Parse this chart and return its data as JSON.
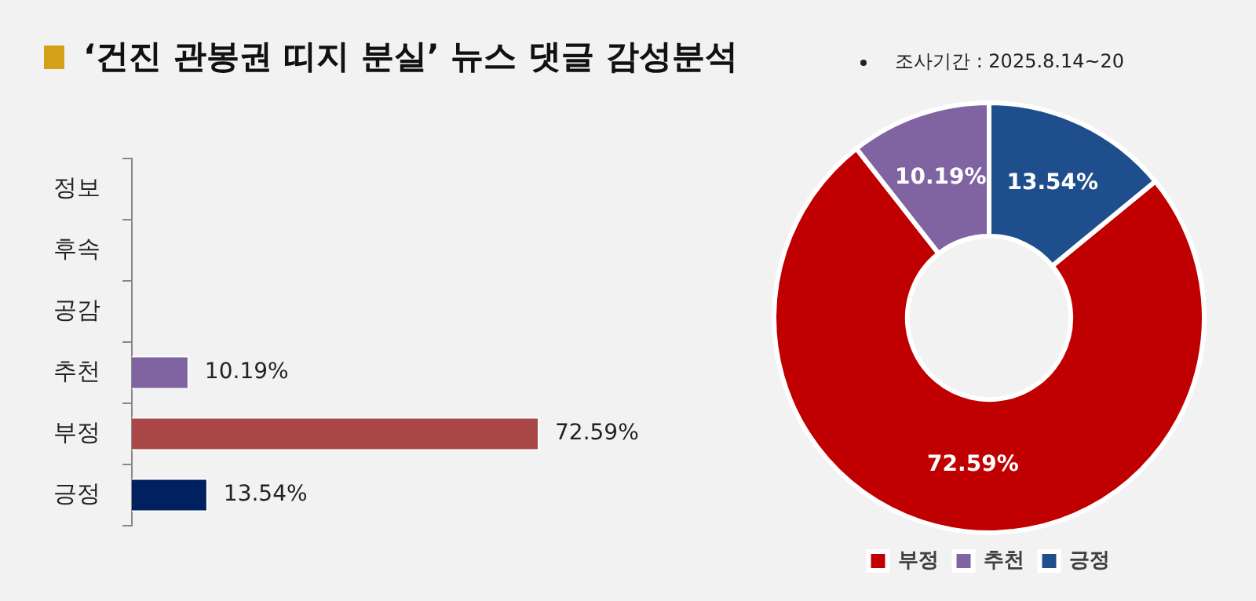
{
  "chart_data": [
    {
      "type": "bar",
      "orientation": "horizontal",
      "title": "‘건진 관봉권 띠지 분실’ 뉴스 댓글 감성분석",
      "categories": [
        "정보",
        "후속",
        "공감",
        "추천",
        "부정",
        "긍정"
      ],
      "values": [
        null,
        null,
        null,
        10.19,
        72.59,
        13.54
      ],
      "colors": [
        "#8064a2",
        "#8064a2",
        "#8064a2",
        "#8064a2",
        "#a94846",
        "#002060"
      ],
      "value_labels": [
        null,
        null,
        null,
        "10.19%",
        "72.59%",
        "13.54%"
      ],
      "legend": false,
      "grid": false
    },
    {
      "type": "donut",
      "subtitle": "조사기간 : 2025.8.14~20",
      "categories": [
        "부정",
        "추천",
        "긍정"
      ],
      "values": [
        72.59,
        10.19,
        13.54
      ],
      "colors": [
        "#c00000",
        "#8064a2",
        "#1f4e8c"
      ],
      "value_labels": [
        "72.59%",
        "10.19%",
        "13.54%"
      ],
      "legend": "bottom"
    }
  ]
}
